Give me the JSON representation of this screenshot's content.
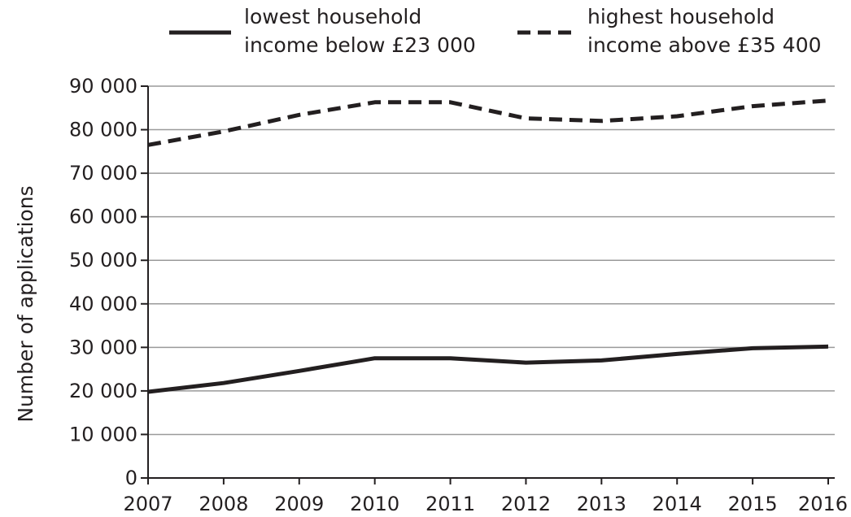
{
  "chart_data": {
    "type": "line",
    "title": "",
    "xlabel": "",
    "ylabel": "Number of applications",
    "categories": [
      "2007",
      "2008",
      "2009",
      "2010",
      "2011",
      "2012",
      "2013",
      "2014",
      "2015",
      "2016"
    ],
    "ylim": [
      0,
      90000
    ],
    "yticks": [
      0,
      10000,
      20000,
      30000,
      40000,
      50000,
      60000,
      70000,
      80000,
      90000
    ],
    "ytick_labels": [
      "0",
      "10 000",
      "20 000",
      "30 000",
      "40 000",
      "50 000",
      "60 000",
      "70 000",
      "80 000",
      "90 000"
    ],
    "grid": "horizontal",
    "legend_position": "top",
    "series": [
      {
        "legend_lines": [
          "lowest household",
          "income below £23 000"
        ],
        "style": "solid",
        "color": "#231f20",
        "values": [
          19800,
          21800,
          24600,
          27500,
          27500,
          26500,
          27000,
          28500,
          29800,
          30200
        ]
      },
      {
        "legend_lines": [
          "highest household",
          "income above £35 400"
        ],
        "style": "dashed",
        "color": "#231f20",
        "values": [
          76500,
          79600,
          83400,
          86300,
          86300,
          82600,
          82000,
          83100,
          85400,
          86700
        ]
      }
    ]
  }
}
